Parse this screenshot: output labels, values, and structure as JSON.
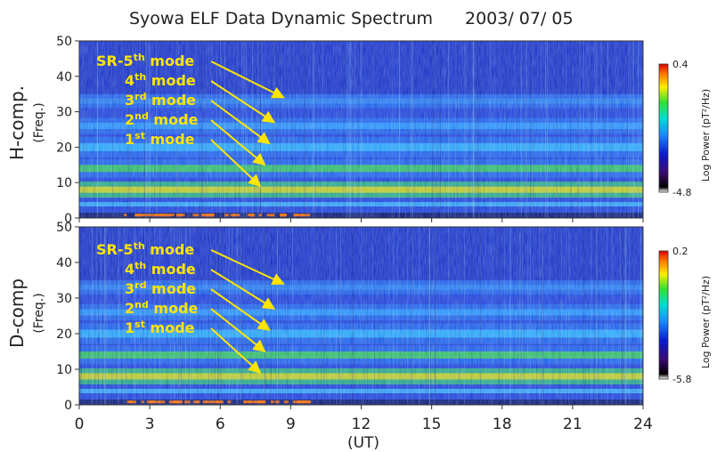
{
  "chart_data": {
    "type": "heatmap",
    "title": "Syowa ELF Data Dynamic Spectrum",
    "date": "2003/ 07/ 05",
    "xlabel": "(UT)",
    "xlim": [
      0,
      24
    ],
    "xticks": [
      "0",
      "3",
      "6",
      "9",
      "12",
      "15",
      "18",
      "21",
      "24"
    ],
    "yticks": [
      "0",
      "10",
      "20",
      "30",
      "40",
      "50"
    ],
    "panels": [
      {
        "ylabel": "H-comp.",
        "ysub": "(Freq.)",
        "ylim": [
          0,
          50
        ],
        "colorbar": {
          "label": "Log Power (pT²/Hz)",
          "max": "0.4",
          "min": "-4.8"
        },
        "mode_bands_hz": [
          8,
          14,
          20,
          26,
          33
        ],
        "modes": [
          {
            "prefix": "SR-5",
            "sup": "th",
            "suffix": " mode"
          },
          {
            "prefix": "4",
            "sup": "th",
            "suffix": " mode"
          },
          {
            "prefix": "3",
            "sup": "rd",
            "suffix": " mode"
          },
          {
            "prefix": "2",
            "sup": "nd",
            "suffix": " mode"
          },
          {
            "prefix": "1",
            "sup": "st",
            "suffix": "  mode"
          }
        ]
      },
      {
        "ylabel": "D-comp",
        "ysub": "(Freq.)",
        "ylim": [
          0,
          50
        ],
        "colorbar": {
          "label": "Log Power (pT²/Hz)",
          "max": "0.2",
          "min": "-5.8"
        },
        "mode_bands_hz": [
          8,
          14,
          20,
          26,
          33
        ],
        "modes": [
          {
            "prefix": "SR-5",
            "sup": "th",
            "suffix": " mode"
          },
          {
            "prefix": "4",
            "sup": "th",
            "suffix": " mode"
          },
          {
            "prefix": "3",
            "sup": "rd",
            "suffix": " mode"
          },
          {
            "prefix": "2",
            "sup": "nd",
            "suffix": " mode"
          },
          {
            "prefix": "1",
            "sup": "st",
            "suffix": "  mode"
          }
        ]
      }
    ],
    "colors": {
      "arrow": "#ffe500",
      "label": "#ffe500"
    }
  }
}
